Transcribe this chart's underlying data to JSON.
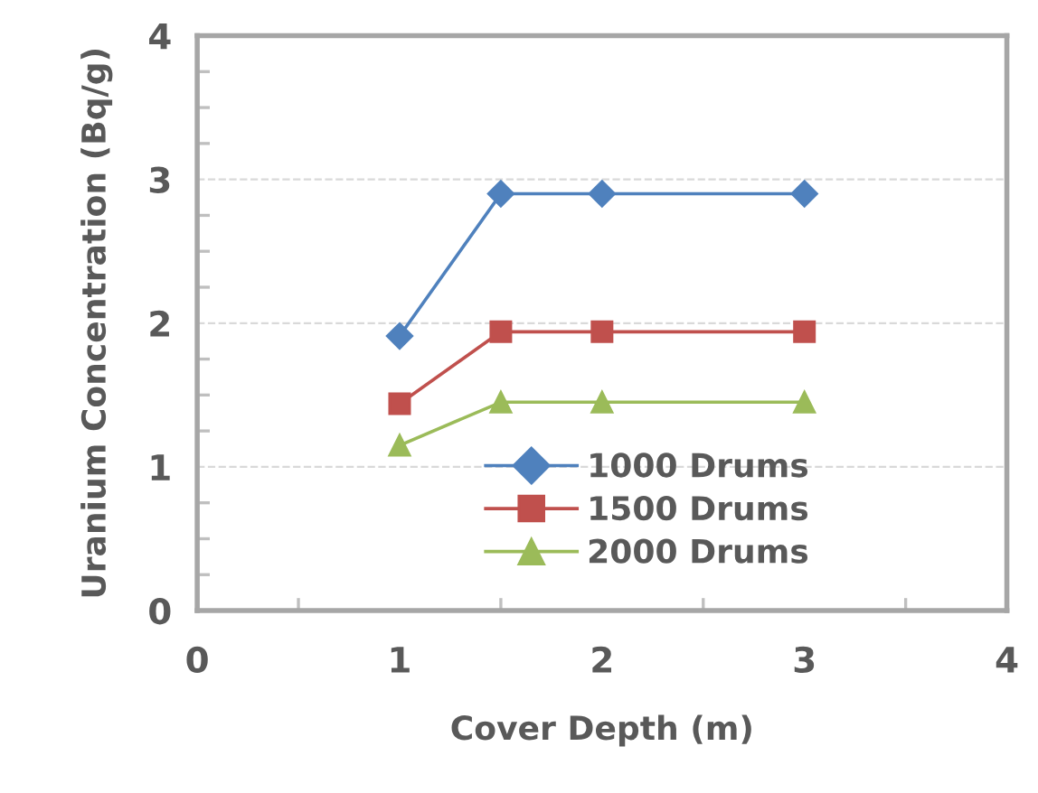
{
  "chart_data": {
    "type": "line",
    "xlabel": "Cover Depth (m)",
    "ylabel": "Uranium Concentration (Bq/g)",
    "x": [
      1,
      1.5,
      2,
      3
    ],
    "series": [
      {
        "name": "1000 Drums",
        "color": "#4f81bd",
        "marker": "diamond",
        "values": [
          1.91,
          2.9,
          2.9,
          2.9
        ]
      },
      {
        "name": "1500 Drums",
        "color": "#c0504d",
        "marker": "square",
        "values": [
          1.44,
          1.94,
          1.94,
          1.94
        ]
      },
      {
        "name": "2000 Drums",
        "color": "#9bbb59",
        "marker": "triangle",
        "values": [
          1.15,
          1.45,
          1.45,
          1.45
        ]
      }
    ],
    "xlim": [
      0,
      4
    ],
    "ylim": [
      0,
      4
    ],
    "xticks": [
      0,
      {
        "value": 0.5,
        "label": null
      },
      1,
      {
        "value": 1.5,
        "label": null
      },
      2,
      {
        "value": 2.5,
        "label": null
      },
      3,
      {
        "value": 3.5,
        "label": null
      },
      4
    ],
    "yticks": [
      0,
      {
        "value": 0.25,
        "label": null
      },
      {
        "value": 0.5,
        "label": null
      },
      {
        "value": 0.75,
        "label": null
      },
      1,
      {
        "value": 1.25,
        "label": null
      },
      {
        "value": 1.5,
        "label": null
      },
      {
        "value": 1.75,
        "label": null
      },
      2,
      {
        "value": 2.25,
        "label": null
      },
      {
        "value": 2.5,
        "label": null
      },
      {
        "value": 2.75,
        "label": null
      },
      3,
      {
        "value": 3.25,
        "label": null
      },
      {
        "value": 3.5,
        "label": null
      },
      {
        "value": 3.75,
        "label": null
      },
      4
    ],
    "grid": "y",
    "legend": "bottom right"
  }
}
